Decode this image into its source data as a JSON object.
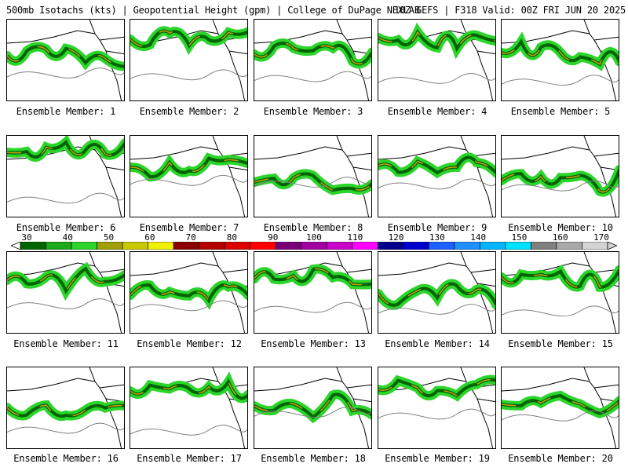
{
  "header": {
    "left": "500mb Isotachs (kts) | Geopotential Height (gpm) | College of DuPage NEXLAB",
    "right": "18Z GEFS | F318 Valid: 00Z FRI JUN 20 2025"
  },
  "colorbar": {
    "labels": [
      "30",
      "40",
      "50",
      "60",
      "70",
      "80",
      "90",
      "100",
      "110",
      "120",
      "130",
      "140",
      "150",
      "160",
      "170"
    ],
    "colors": [
      "#006400",
      "#19a919",
      "#2cd42c",
      "#a0a000",
      "#c8c800",
      "#f0f000",
      "#8b0000",
      "#b40000",
      "#dc0000",
      "#ff0000",
      "#7a007a",
      "#a000a0",
      "#c800c8",
      "#ff00ff",
      "#00008b",
      "#0000cd",
      "#1e60ff",
      "#1e90ff",
      "#00b4ff",
      "#00e0ff",
      "#808080",
      "#a9a9a9",
      "#d3d3d3"
    ]
  },
  "members": [
    {
      "caption": "Ensemble Member: 1"
    },
    {
      "caption": "Ensemble Member: 2"
    },
    {
      "caption": "Ensemble Member: 3"
    },
    {
      "caption": "Ensemble Member: 4"
    },
    {
      "caption": "Ensemble Member: 5"
    },
    {
      "caption": "Ensemble Member: 6"
    },
    {
      "caption": "Ensemble Member: 7"
    },
    {
      "caption": "Ensemble Member: 8"
    },
    {
      "caption": "Ensemble Member: 9"
    },
    {
      "caption": "Ensemble Member: 10"
    },
    {
      "caption": "Ensemble Member: 11"
    },
    {
      "caption": "Ensemble Member: 12"
    },
    {
      "caption": "Ensemble Member: 13"
    },
    {
      "caption": "Ensemble Member: 14"
    },
    {
      "caption": "Ensemble Member: 15"
    },
    {
      "caption": "Ensemble Member: 16"
    },
    {
      "caption": "Ensemble Member: 17"
    },
    {
      "caption": "Ensemble Member: 18"
    },
    {
      "caption": "Ensemble Member: 19"
    },
    {
      "caption": "Ensemble Member: 20"
    }
  ]
}
